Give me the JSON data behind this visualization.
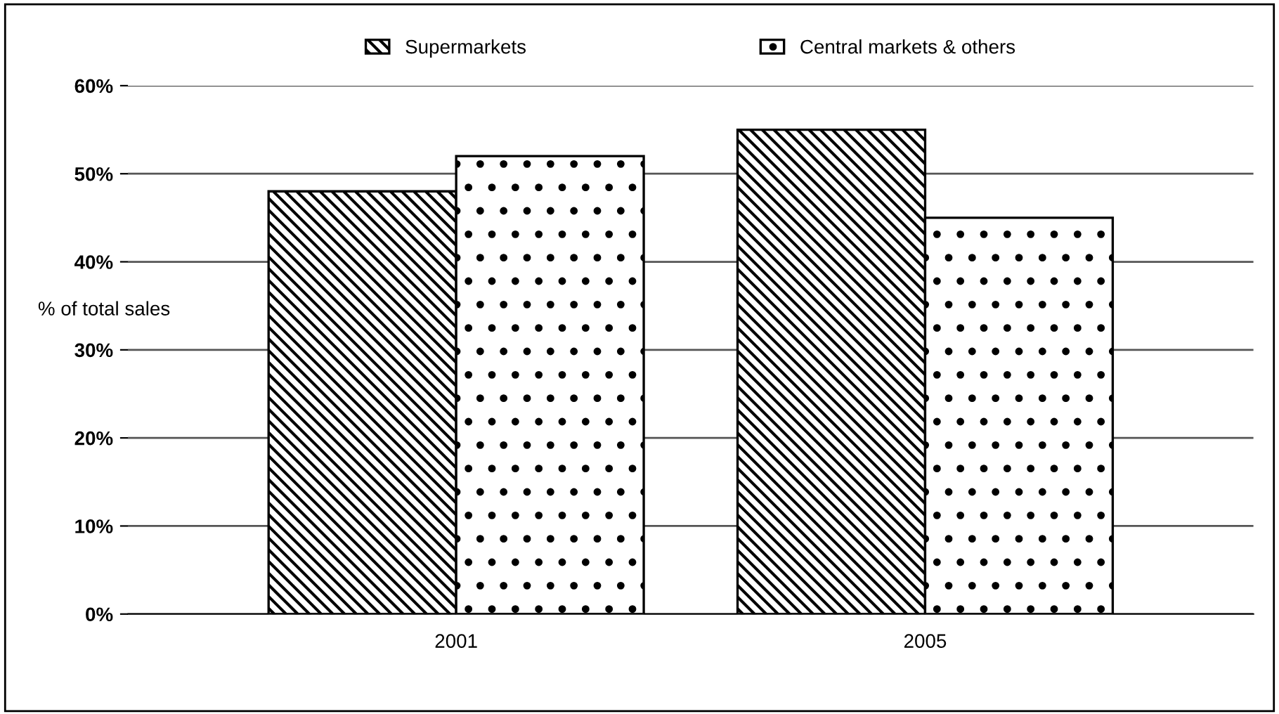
{
  "chart_data": {
    "type": "bar",
    "ylabel": "% of total sales",
    "categories": [
      "2001",
      "2005"
    ],
    "series": [
      {
        "name": "Supermarkets",
        "color": "#000000",
        "values": [
          48,
          55
        ]
      },
      {
        "name": "Central markets & others",
        "color": "#000000",
        "values": [
          52,
          45
        ]
      }
    ],
    "ylim": [
      0,
      60
    ],
    "yticks": [
      {
        "value": 0,
        "label": "0%"
      },
      {
        "value": 10,
        "label": "10%"
      },
      {
        "value": 20,
        "label": "20%"
      },
      {
        "value": 30,
        "label": "30%"
      },
      {
        "value": 40,
        "label": "40%"
      },
      {
        "value": 50,
        "label": "50%"
      },
      {
        "value": 60,
        "label": "60%"
      }
    ],
    "grid": "y",
    "legend": "top"
  }
}
